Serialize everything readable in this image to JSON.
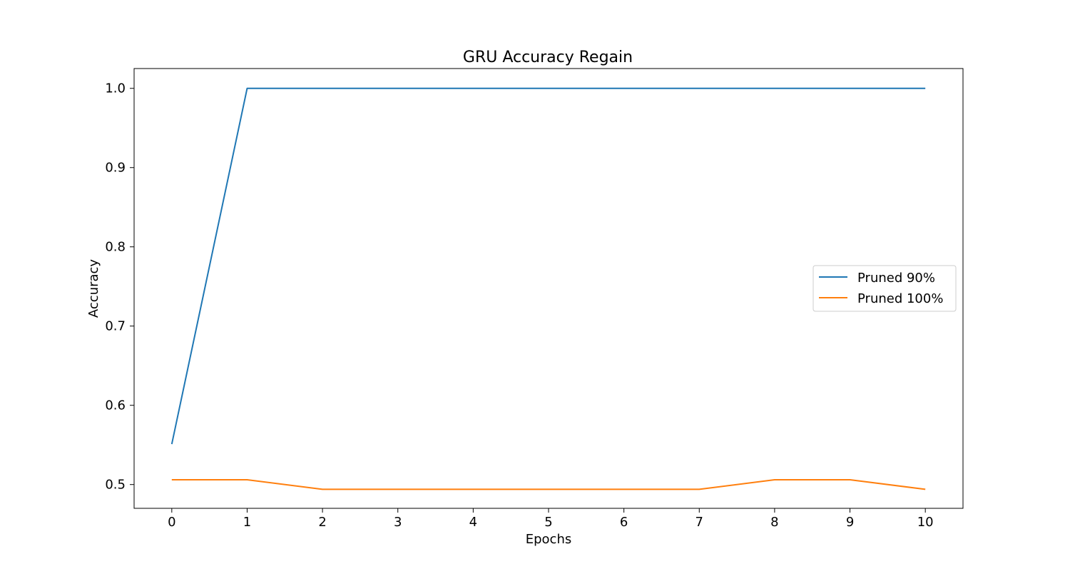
{
  "chart_data": {
    "type": "line",
    "title": "GRU Accuracy Regain",
    "xlabel": "Epochs",
    "ylabel": "Accuracy",
    "x": [
      0,
      1,
      2,
      3,
      4,
      5,
      6,
      7,
      8,
      9,
      10
    ],
    "xticks": [
      "0",
      "1",
      "2",
      "3",
      "4",
      "5",
      "6",
      "7",
      "8",
      "9",
      "10"
    ],
    "yticks": [
      "0.5",
      "0.6",
      "0.7",
      "0.8",
      "0.9",
      "1.0"
    ],
    "ytick_values": [
      0.5,
      0.6,
      0.7,
      0.8,
      0.9,
      1.0
    ],
    "xlim": [
      -0.5,
      10.5
    ],
    "ylim": [
      0.47,
      1.025
    ],
    "grid": false,
    "legend_position": "center-right",
    "series": [
      {
        "name": "Pruned 90%",
        "color": "#1f77b4",
        "values": [
          0.551,
          1.0,
          1.0,
          1.0,
          1.0,
          1.0,
          1.0,
          1.0,
          1.0,
          1.0,
          1.0
        ]
      },
      {
        "name": "Pruned 100%",
        "color": "#ff7f0e",
        "values": [
          0.506,
          0.506,
          0.494,
          0.494,
          0.494,
          0.494,
          0.494,
          0.494,
          0.506,
          0.506,
          0.494
        ]
      }
    ]
  }
}
